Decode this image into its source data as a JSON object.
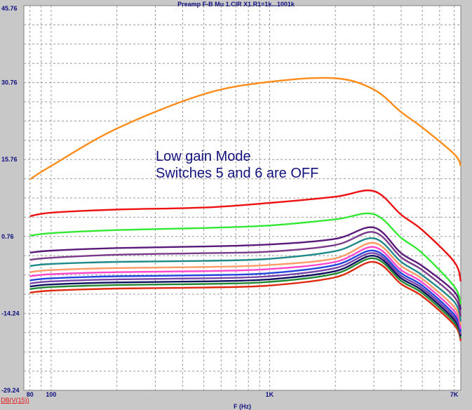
{
  "title": "Preamp F-B Mu 1.CIR X1.R1=1k...1001k",
  "chart_data": {
    "type": "line",
    "title": "Preamp F-B Mu 1.CIR X1.R1=1k...1001k",
    "xlabel": "F (Hz)",
    "ylabel": "",
    "x_scale": "log",
    "xlim": [
      75,
      7500
    ],
    "ylim": [
      -29.24,
      45.76
    ],
    "y_ticks": [
      45.76,
      30.76,
      15.76,
      0.76,
      -14.24,
      -29.24
    ],
    "y_tick_labels": [
      "45.76",
      "30.76",
      "15.76",
      "0.76",
      "-14.24",
      "-29.24"
    ],
    "x_tick_labels": [
      {
        "value": 80,
        "label": "80"
      },
      {
        "value": 100,
        "label": "100"
      },
      {
        "value": 1000,
        "label": "1K"
      },
      {
        "value": 7000,
        "label": "7K"
      }
    ],
    "grid": true,
    "trace_label": "DB(V(15))",
    "annotations": [
      "Low gain Mode",
      "Switches 5 and 6 are OFF"
    ],
    "x": [
      80,
      100,
      200,
      500,
      1000,
      2000,
      3000,
      4000,
      5000,
      7000,
      7500
    ],
    "series": [
      {
        "color": "#ff8c1a",
        "values": [
          11.9,
          14.5,
          21.8,
          28.5,
          30.9,
          31.6,
          29.4,
          25.0,
          22.0,
          16.8,
          14.5
        ]
      },
      {
        "color": "#ee1111",
        "values": [
          4.7,
          5.4,
          6.0,
          6.4,
          7.3,
          8.5,
          9.6,
          5.0,
          2.0,
          -4.2,
          -8.0
        ]
      },
      {
        "color": "#33e833",
        "values": [
          0.9,
          1.4,
          2.0,
          2.4,
          2.9,
          4.1,
          5.1,
          0.5,
          -2.5,
          -9.0,
          -12.5
        ]
      },
      {
        "color": "#5a1a7a",
        "values": [
          -2.4,
          -2.0,
          -1.5,
          -1.2,
          -0.8,
          0.3,
          2.5,
          -2.5,
          -5.0,
          -10.0,
          -13.5
        ]
      },
      {
        "color": "#7a3a8a",
        "values": [
          -3.8,
          -3.4,
          -2.8,
          -2.5,
          -2.2,
          -0.9,
          1.6,
          -3.3,
          -5.8,
          -11.0,
          -14.8
        ]
      },
      {
        "color": "#208a8a",
        "values": [
          -5.0,
          -4.6,
          -4.2,
          -4.0,
          -3.6,
          -2.1,
          0.4,
          -4.2,
          -6.8,
          -12.0,
          -15.8
        ]
      },
      {
        "color": "#ff9966",
        "values": [
          -6.2,
          -5.8,
          -5.4,
          -5.2,
          -4.8,
          -3.5,
          -0.5,
          -5.0,
          -7.5,
          -13.0,
          -16.5
        ]
      },
      {
        "color": "#ff44cc",
        "values": [
          -7.0,
          -6.6,
          -6.2,
          -6.0,
          -5.6,
          -4.2,
          -1.3,
          -5.8,
          -8.2,
          -13.8,
          -17.2
        ]
      },
      {
        "color": "#2244dd",
        "values": [
          -7.8,
          -7.4,
          -7.0,
          -6.8,
          -6.4,
          -4.8,
          -2.0,
          -6.4,
          -8.8,
          -14.5,
          -17.8
        ]
      },
      {
        "color": "#7744aa",
        "values": [
          -8.4,
          -8.0,
          -7.6,
          -7.4,
          -7.0,
          -5.4,
          -2.5,
          -6.9,
          -9.3,
          -15.0,
          -18.3
        ]
      },
      {
        "color": "#101060",
        "values": [
          -9.0,
          -8.6,
          -8.2,
          -8.0,
          -7.6,
          -6.0,
          -3.0,
          -7.4,
          -9.8,
          -15.5,
          -18.7
        ]
      },
      {
        "color": "#228833",
        "values": [
          -9.5,
          -9.1,
          -8.7,
          -8.5,
          -8.1,
          -6.5,
          -3.5,
          -7.9,
          -10.3,
          -16.0,
          -19.1
        ]
      },
      {
        "color": "#e02a10",
        "values": [
          -10.2,
          -9.8,
          -9.4,
          -9.2,
          -8.8,
          -7.2,
          -4.2,
          -8.5,
          -10.9,
          -16.5,
          -19.6
        ]
      }
    ]
  }
}
